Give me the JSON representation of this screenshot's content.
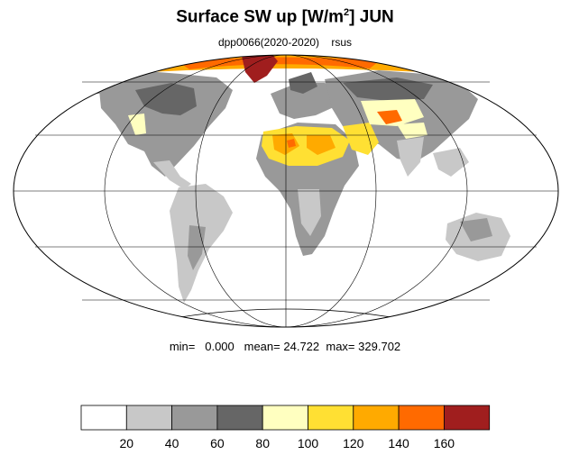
{
  "title": {
    "prefix": "Surface SW up [W/m",
    "sup": "2",
    "suffix": "]  JUN"
  },
  "subtitle": {
    "experiment": "dpp0066(2020-2020)",
    "variable": "rsus"
  },
  "stats": {
    "min_label": "min=",
    "min_value": "0.000",
    "mean_label": "mean=",
    "mean_value": "24.722",
    "max_label": "max=",
    "max_value": "329.702"
  },
  "colorbar": {
    "levels": [
      "20",
      "40",
      "60",
      "80",
      "100",
      "120",
      "140",
      "160"
    ],
    "colors": [
      "#ffffff",
      "#c8c8c8",
      "#999999",
      "#666666",
      "#ffffc0",
      "#ffe033",
      "#ffaa00",
      "#ff6a00",
      "#a01e1e"
    ]
  },
  "map": {
    "projection": "Mollweide",
    "ocean_color": "#ffffff",
    "grid_color": "#000000"
  }
}
